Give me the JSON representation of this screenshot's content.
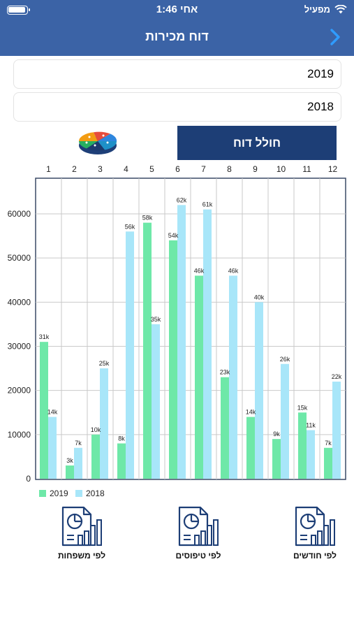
{
  "status_bar": {
    "time": "1:46 אחי",
    "carrier": "מפעיל"
  },
  "nav": {
    "title": "דוח מכירות"
  },
  "inputs": {
    "year1": "2019",
    "year2": "2018"
  },
  "buttons": {
    "generate": "חולל דוח"
  },
  "colors": {
    "nav": "#3b63a6",
    "button": "#1d3e76",
    "series_2019": "#6ee8a8",
    "series_2018": "#a8e6f9",
    "icon": "#1d3e76"
  },
  "icons": {
    "back": "chevron-right-icon",
    "pie": "pie-chart-icon",
    "report": "report-chart-icon"
  },
  "chart_data": {
    "type": "bar",
    "categories": [
      "1",
      "2",
      "3",
      "4",
      "5",
      "6",
      "7",
      "8",
      "9",
      "10",
      "11",
      "12"
    ],
    "series": [
      {
        "name": "2019",
        "values": [
          31000,
          3000,
          10000,
          8000,
          58000,
          54000,
          46000,
          23000,
          14000,
          9000,
          15000,
          7000
        ],
        "labels": [
          "31k",
          "3k",
          "10k",
          "8k",
          "58k",
          "54k",
          "46k",
          "23k",
          "14k",
          "9k",
          "15k",
          "7k"
        ]
      },
      {
        "name": "2018",
        "values": [
          14000,
          7000,
          25000,
          56000,
          35000,
          62000,
          61000,
          46000,
          40000,
          26000,
          11000,
          22000
        ],
        "labels": [
          "14k",
          "7k",
          "25k",
          "56k",
          "35k",
          "62k",
          "61k",
          "46k",
          "40k",
          "26k",
          "11k",
          "22k"
        ]
      }
    ],
    "yticks": [
      "0",
      "10000",
      "20000",
      "30000",
      "40000",
      "50000",
      "60000"
    ],
    "ylim": [
      0,
      66000
    ],
    "grid": true,
    "x_axis_position": "top",
    "legend": "bottom-left"
  },
  "reports": {
    "by_family": "לפי משפחות",
    "by_type": "לפי טיפוסים",
    "by_month": "לפי חודשים"
  }
}
